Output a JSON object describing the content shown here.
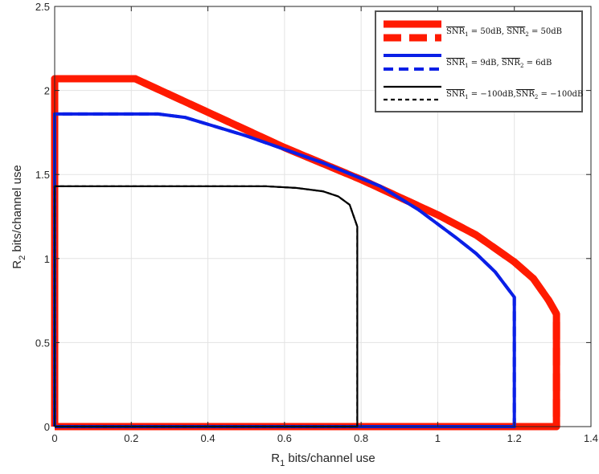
{
  "chart_data": {
    "type": "line",
    "title": "",
    "xlabel": {
      "main": "R",
      "sub": "1",
      "rest": " bits/channel use"
    },
    "ylabel": {
      "main": "R",
      "sub": "2",
      "rest": " bits/channel use"
    },
    "xlim": [
      0,
      1.4
    ],
    "ylim": [
      0,
      2.5
    ],
    "xticks": [
      0,
      0.2,
      0.4,
      0.6,
      0.8,
      1,
      1.2,
      1.4
    ],
    "xtick_labels": [
      "0",
      "0.2",
      "0.4",
      "0.6",
      "0.8",
      "1",
      "1.2",
      "1.4"
    ],
    "yticks": [
      0,
      0.5,
      1,
      1.5,
      2,
      2.5
    ],
    "ytick_labels": [
      "0",
      "0.5",
      "1",
      "1.5",
      "2",
      "2.5"
    ],
    "grid": true,
    "legend_position": "top-right",
    "series": [
      {
        "name": "SNR_1 = 50dB, SNR_2 = 50dB (solid)",
        "legend_label": "SNR1 = 50dB, SNR2 = 50dB",
        "color": "#ff1a00",
        "style": "solid",
        "weight": "heavy",
        "x": [
          0,
          0,
          0.21,
          0.6,
          0.8,
          1.0,
          1.1,
          1.2,
          1.25,
          1.29,
          1.31,
          1.31,
          0
        ],
        "y": [
          0,
          2.07,
          2.07,
          1.66,
          1.47,
          1.26,
          1.14,
          0.98,
          0.88,
          0.75,
          0.67,
          0,
          0
        ]
      },
      {
        "name": "SNR_1 = 50dB, SNR_2 = 50dB (dashed)",
        "legend_label": "",
        "color": "#ff1a00",
        "style": "dashed",
        "weight": "heavy",
        "x": [
          0,
          0,
          0.21,
          0.6,
          0.8,
          1.0,
          1.1,
          1.2,
          1.25,
          1.29,
          1.31,
          1.31,
          0
        ],
        "y": [
          0,
          2.07,
          2.07,
          1.66,
          1.47,
          1.26,
          1.14,
          0.98,
          0.88,
          0.75,
          0.67,
          0,
          0
        ]
      },
      {
        "name": "SNR_1 = 9dB, SNR_2 = 6dB (solid)",
        "legend_label": "SNR1 = 9dB, SNR2 = 6dB",
        "color": "#0a1fe6",
        "style": "solid",
        "weight": "medium",
        "x": [
          0,
          0,
          0.27,
          0.34,
          0.5,
          0.7,
          0.85,
          0.95,
          1.05,
          1.1,
          1.15,
          1.2,
          1.2,
          0
        ],
        "y": [
          0,
          1.86,
          1.86,
          1.84,
          1.73,
          1.57,
          1.43,
          1.29,
          1.12,
          1.03,
          0.92,
          0.77,
          0,
          0
        ]
      },
      {
        "name": "SNR_1 = 9dB, SNR_2 = 6dB (dashed)",
        "legend_label": "",
        "color": "#0a1fe6",
        "style": "dashed",
        "weight": "medium",
        "x": [
          0,
          0,
          0.27,
          0.34,
          0.5,
          0.7,
          0.85,
          0.95,
          1.05,
          1.1,
          1.15,
          1.2,
          1.2,
          0
        ],
        "y": [
          0,
          1.86,
          1.86,
          1.84,
          1.73,
          1.57,
          1.43,
          1.29,
          1.12,
          1.03,
          0.92,
          0.77,
          0,
          0
        ]
      },
      {
        "name": "SNR_1 = -100dB, SNR_2 = -100dB (solid)",
        "legend_label": "SNR1 = -100dB, SNR2 = -100dB",
        "color": "#000000",
        "style": "solid",
        "weight": "light",
        "x": [
          0,
          0,
          0.55,
          0.63,
          0.7,
          0.74,
          0.77,
          0.79,
          0.79,
          0
        ],
        "y": [
          0,
          1.43,
          1.43,
          1.42,
          1.4,
          1.37,
          1.32,
          1.19,
          0,
          0
        ]
      },
      {
        "name": "SNR_1 = -100dB, SNR_2 = -100dB (dashed)",
        "legend_label": "",
        "color": "#000000",
        "style": "dashed",
        "weight": "light",
        "x": [
          0,
          0,
          0.55,
          0.63,
          0.7,
          0.74,
          0.77,
          0.79,
          0.79,
          0
        ],
        "y": [
          0,
          1.43,
          1.43,
          1.42,
          1.4,
          1.37,
          1.32,
          1.19,
          0,
          0
        ]
      }
    ],
    "legend_entries": [
      {
        "text_main": "SNR",
        "s1": "1",
        "eq1": " = 50dB, ",
        "s2": "2",
        "eq2": " = 50dB",
        "color": "#ff1a00",
        "weight": "heavy"
      },
      {
        "text_main": "SNR",
        "s1": "1",
        "eq1": " = 9dB, ",
        "s2": "2",
        "eq2": " = 6dB",
        "color": "#0a1fe6",
        "weight": "medium"
      },
      {
        "text_main": "SNR",
        "s1": "1",
        "eq1": " = −100dB,",
        "s2": "2",
        "eq2": " = −100dB",
        "color": "#000000",
        "weight": "light"
      }
    ]
  }
}
